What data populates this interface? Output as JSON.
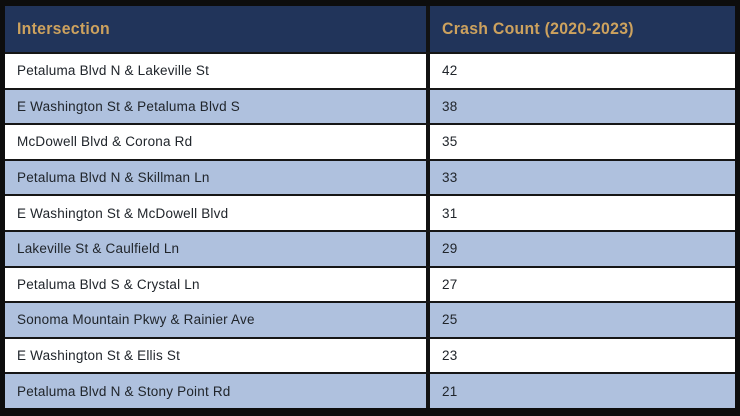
{
  "table": {
    "headers": [
      {
        "label": "Intersection"
      },
      {
        "label": "Crash Count (2020-2023)"
      }
    ],
    "rows": [
      {
        "intersection": "Petaluma Blvd N & Lakeville St",
        "count": "42"
      },
      {
        "intersection": "E Washington St & Petaluma Blvd S",
        "count": "38"
      },
      {
        "intersection": "McDowell Blvd & Corona Rd",
        "count": "35"
      },
      {
        "intersection": "Petaluma Blvd N & Skillman Ln",
        "count": "33"
      },
      {
        "intersection": "E Washington St & McDowell Blvd",
        "count": "31"
      },
      {
        "intersection": "Lakeville St & Caulfield Ln",
        "count": "29"
      },
      {
        "intersection": "Petaluma Blvd S & Crystal Ln",
        "count": "27"
      },
      {
        "intersection": "Sonoma Mountain Pkwy & Rainier Ave",
        "count": "25"
      },
      {
        "intersection": "E Washington St & Ellis St",
        "count": "23"
      },
      {
        "intersection": "Petaluma Blvd N & Stony Point Rd",
        "count": "21"
      }
    ]
  },
  "colors": {
    "header_bg": "#21345a",
    "header_text": "#cda25e",
    "row_white_bg": "#ffffff",
    "row_blue_bg": "#afc1de",
    "frame_border": "#0d0d0d",
    "body_text": "#20252b"
  },
  "chart_data": {
    "type": "table",
    "columns": [
      "Intersection",
      "Crash Count (2020-2023)"
    ],
    "categories": [
      "Petaluma Blvd N & Lakeville St",
      "E Washington St & Petaluma Blvd S",
      "McDowell Blvd & Corona Rd",
      "Petaluma Blvd N & Skillman Ln",
      "E Washington St & McDowell Blvd",
      "Lakeville St & Caulfield Ln",
      "Petaluma Blvd S & Crystal Ln",
      "Sonoma Mountain Pkwy & Rainier Ave",
      "E Washington St & Ellis St",
      "Petaluma Blvd N & Stony Point Rd"
    ],
    "values": [
      42,
      38,
      35,
      33,
      31,
      29,
      27,
      25,
      23,
      21
    ],
    "title": "",
    "xlabel": "Intersection",
    "ylabel": "Crash Count (2020-2023)"
  }
}
